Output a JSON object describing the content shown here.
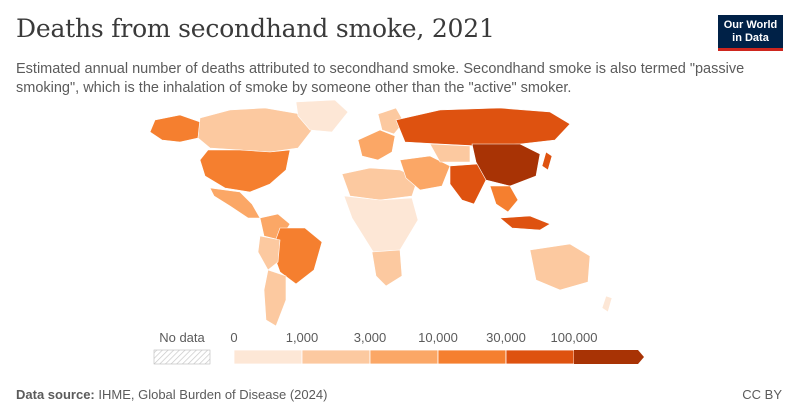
{
  "header": {
    "title": "Deaths from secondhand smoke, 2021",
    "subtitle": "Estimated annual number of deaths attributed to secondhand smoke. Secondhand smoke is also termed \"passive smoking\", which is the inhalation of smoke by someone other than the \"active\" smoker."
  },
  "logo": {
    "line1": "Our World",
    "line2": "in Data"
  },
  "legend": {
    "no_data_label": "No data",
    "ticks": [
      "0",
      "1,000",
      "3,000",
      "10,000",
      "30,000",
      "100,000"
    ],
    "colors": [
      "#fde7d6",
      "#fcc9a0",
      "#fba766",
      "#f57f2f",
      "#de5210",
      "#a83305"
    ]
  },
  "footer": {
    "source_label": "Data source:",
    "source_text": "IHME, Global Burden of Disease (2024)",
    "license": "CC BY"
  }
}
